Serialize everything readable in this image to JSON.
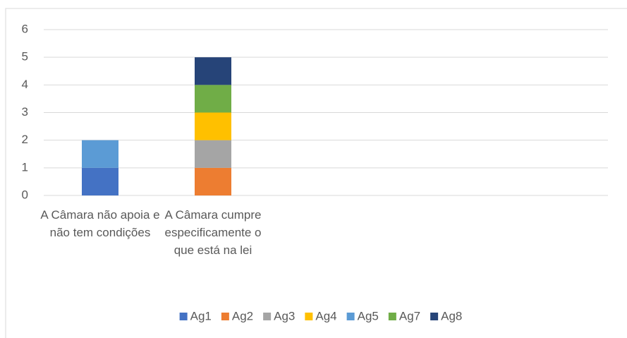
{
  "chart_data": {
    "type": "stacked_bar",
    "categories": [
      "A  Câmara não apoia e não tem condições",
      "A Câmara cumpre especificamente o que está na lei",
      null,
      null,
      null
    ],
    "series": [
      {
        "name": "Ag1",
        "color": "#4472c4",
        "values": [
          1,
          0,
          null,
          null,
          null
        ]
      },
      {
        "name": "Ag2",
        "color": "#ed7d31",
        "values": [
          0,
          1,
          null,
          null,
          null
        ]
      },
      {
        "name": "Ag3",
        "color": "#a5a5a5",
        "values": [
          0,
          1,
          null,
          null,
          null
        ]
      },
      {
        "name": "Ag4",
        "color": "#ffc000",
        "values": [
          0,
          1,
          null,
          null,
          null
        ]
      },
      {
        "name": "Ag5",
        "color": "#5b9bd5",
        "values": [
          1,
          0,
          null,
          null,
          null
        ]
      },
      {
        "name": "Ag7",
        "color": "#70ad47",
        "values": [
          0,
          1,
          null,
          null,
          null
        ]
      },
      {
        "name": "Ag8",
        "color": "#264478",
        "values": [
          0,
          1,
          null,
          null,
          null
        ]
      }
    ],
    "ylim": [
      0,
      6
    ],
    "yticks": [
      0,
      1,
      2,
      3,
      4,
      5,
      6
    ],
    "grid": true,
    "legend": "bottom"
  }
}
